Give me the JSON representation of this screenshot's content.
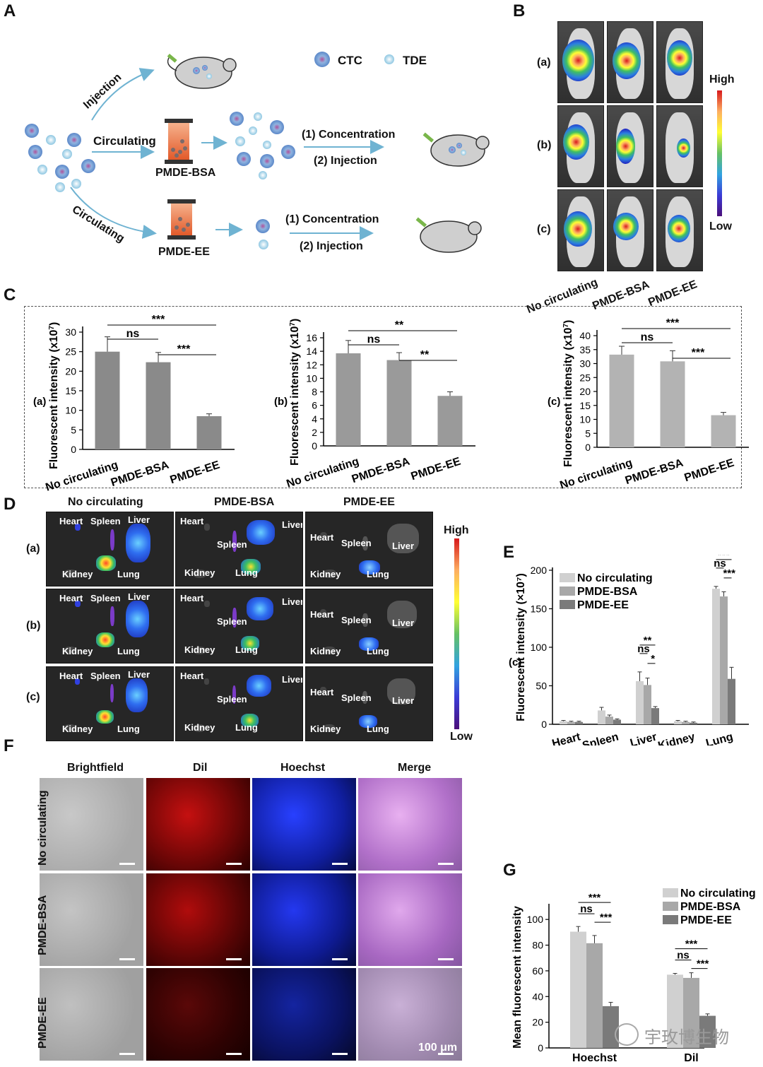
{
  "panels": {
    "A": "A",
    "B": "B",
    "C": "C",
    "D": "D",
    "E": "E",
    "F": "F",
    "G": "G"
  },
  "panelA": {
    "legend_ctc": "CTC",
    "legend_tde": "TDE",
    "injection": "Injection",
    "circulating1": "Circulating",
    "circulating2": "Circulating",
    "device1": "PMDE-BSA",
    "device2": "PMDE-EE",
    "step1a": "(1) Concentration",
    "step2a": "(2) Injection",
    "step1b": "(1) Concentration",
    "step2b": "(2) Injection"
  },
  "panelB": {
    "rows": [
      "(a)",
      "(b)",
      "(c)"
    ],
    "cols": [
      "No circulating",
      "PMDE-BSA",
      "PMDE-EE"
    ],
    "high": "High",
    "low": "Low"
  },
  "panelC": {
    "ylabel": "Fluorescent intensity (x10",
    "ylabel_exp": "7",
    "ylabel_close": ")"
  },
  "panelD": {
    "cols": [
      "No circulating",
      "PMDE-BSA",
      "PMDE-EE"
    ],
    "rows": [
      "(a)",
      "(b)",
      "(c)"
    ],
    "organs": {
      "heart": "Heart",
      "spleen": "Spleen",
      "liver": "Liver",
      "kidney": "Kidney",
      "lung": "Lung"
    },
    "high": "High",
    "low": "Low"
  },
  "panelF": {
    "cols": [
      "Brightfield",
      "Dil",
      "Hoechst",
      "Merge"
    ],
    "rows": [
      "No circulating",
      "PMDE-BSA",
      "PMDE-EE"
    ],
    "scale": "100 μm"
  },
  "watermark": "宇玫博生物",
  "chart_data": [
    {
      "id": "C-a",
      "type": "bar",
      "panel_label": "(a)",
      "categories": [
        "No circulating",
        "PMDE-BSA",
        "PMDE-EE"
      ],
      "values": [
        25,
        22.3,
        8.5
      ],
      "errors": [
        3.8,
        2.5,
        0.6
      ],
      "ylim": [
        0,
        30
      ],
      "yticks": [
        0,
        5,
        10,
        15,
        20,
        25,
        30
      ],
      "ylabel": "Fluorescent intensity (x10^7)",
      "significance": [
        {
          "from": 0,
          "to": 1,
          "label": "ns"
        },
        {
          "from": 0,
          "to": 2,
          "label": "***"
        },
        {
          "from": 1,
          "to": 2,
          "label": "***"
        }
      ]
    },
    {
      "id": "C-b",
      "type": "bar",
      "panel_label": "(b)",
      "categories": [
        "No circulating",
        "PMDE-BSA",
        "PMDE-EE"
      ],
      "values": [
        13.7,
        12.7,
        7.4
      ],
      "errors": [
        1.9,
        1.1,
        0.6
      ],
      "ylim": [
        0,
        16
      ],
      "yticks": [
        0,
        2,
        4,
        6,
        8,
        10,
        12,
        14,
        16
      ],
      "ylabel": "Fluorescent intensity (x10^7)",
      "significance": [
        {
          "from": 0,
          "to": 1,
          "label": "ns"
        },
        {
          "from": 0,
          "to": 2,
          "label": "**"
        },
        {
          "from": 1,
          "to": 2,
          "label": "**"
        }
      ]
    },
    {
      "id": "C-c",
      "type": "bar",
      "panel_label": "(c)",
      "categories": [
        "No circulating",
        "PMDE-BSA",
        "PMDE-EE"
      ],
      "values": [
        33.2,
        30.8,
        11.5
      ],
      "errors": [
        3.0,
        3.8,
        1.0
      ],
      "ylim": [
        0,
        40
      ],
      "yticks": [
        0,
        5,
        10,
        15,
        20,
        25,
        30,
        35,
        40
      ],
      "ylabel": "Fluorescent intensity (x10^7)",
      "significance": [
        {
          "from": 0,
          "to": 1,
          "label": "ns"
        },
        {
          "from": 0,
          "to": 2,
          "label": "***"
        },
        {
          "from": 1,
          "to": 2,
          "label": "***"
        }
      ]
    },
    {
      "id": "E",
      "type": "bar",
      "panel_label": "(c)",
      "categories": [
        "Heart",
        "Spleen",
        "Liver",
        "Kidney",
        "Lung"
      ],
      "series": [
        {
          "name": "No circulating",
          "values": [
            4,
            18,
            56,
            4,
            176
          ],
          "errors": [
            1,
            4,
            12,
            1,
            3
          ],
          "color": "#d0d0d0"
        },
        {
          "name": "PMDE-BSA",
          "values": [
            3,
            10,
            51,
            3,
            166
          ],
          "errors": [
            1,
            2,
            9,
            1,
            6
          ],
          "color": "#a8a8a8"
        },
        {
          "name": "PMDE-EE",
          "values": [
            3,
            6,
            21,
            2,
            59
          ],
          "errors": [
            1,
            1,
            2,
            1,
            15
          ],
          "color": "#7a7a7a"
        }
      ],
      "ylim": [
        0,
        200
      ],
      "yticks": [
        0,
        50,
        100,
        150,
        200
      ],
      "ylabel": "Fluorescent intensity (×10^7)",
      "legend_position": "top-left",
      "significance": [
        {
          "cat": 2,
          "labels": [
            "**",
            "ns",
            "*"
          ]
        },
        {
          "cat": 4,
          "labels": [
            "***",
            "ns",
            "***"
          ]
        }
      ]
    },
    {
      "id": "G",
      "type": "bar",
      "categories": [
        "Hoechst",
        "Dil"
      ],
      "series": [
        {
          "name": "No circulating",
          "values": [
            90.5,
            57
          ],
          "errors": [
            4,
            1
          ],
          "color": "#d0d0d0"
        },
        {
          "name": "PMDE-BSA",
          "values": [
            81.5,
            54.5
          ],
          "errors": [
            6,
            4
          ],
          "color": "#a8a8a8"
        },
        {
          "name": "PMDE-EE",
          "values": [
            32.5,
            25
          ],
          "errors": [
            3,
            1.5
          ],
          "color": "#7a7a7a"
        }
      ],
      "ylim": [
        0,
        110
      ],
      "yticks": [
        0,
        20,
        40,
        60,
        80,
        100
      ],
      "ylabel": "Mean fluorescent intensity",
      "legend_position": "top-right",
      "significance": [
        {
          "cat": 0,
          "labels": [
            "***",
            "ns",
            "***"
          ]
        },
        {
          "cat": 1,
          "labels": [
            "***",
            "ns",
            "***"
          ]
        }
      ]
    }
  ]
}
